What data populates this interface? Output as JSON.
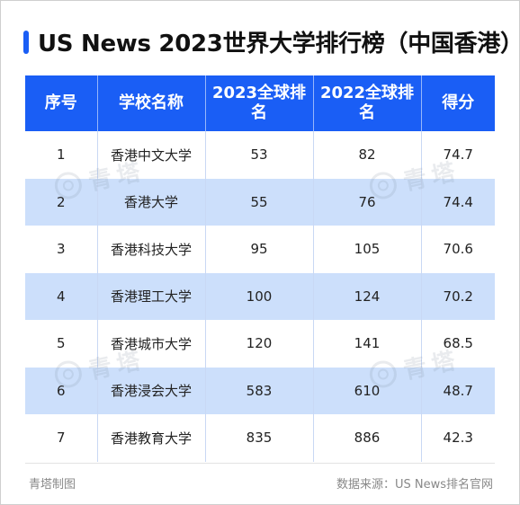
{
  "title": "US News 2023世界大学排行榜（中国香港）",
  "accent_color": "#1a5ef5",
  "header_color": "#1a5ef5",
  "alt_row_color": "#ccdffb",
  "table": {
    "headers": [
      "序号",
      "学校名称",
      "2023全球排名",
      "2022全球排名",
      "得分"
    ],
    "rows": [
      [
        "1",
        "香港中文大学",
        "53",
        "82",
        "74.7"
      ],
      [
        "2",
        "香港大学",
        "55",
        "76",
        "74.4"
      ],
      [
        "3",
        "香港科技大学",
        "95",
        "105",
        "70.6"
      ],
      [
        "4",
        "香港理工大学",
        "100",
        "124",
        "70.2"
      ],
      [
        "5",
        "香港城市大学",
        "120",
        "141",
        "68.5"
      ],
      [
        "6",
        "香港浸会大学",
        "583",
        "610",
        "48.7"
      ],
      [
        "7",
        "香港教育大学",
        "835",
        "886",
        "42.3"
      ]
    ]
  },
  "footer": {
    "left": "青塔制图",
    "right": "数据来源：US News排名官网"
  },
  "watermark": {
    "text": "青塔",
    "icon": "qingta-logo-icon"
  }
}
